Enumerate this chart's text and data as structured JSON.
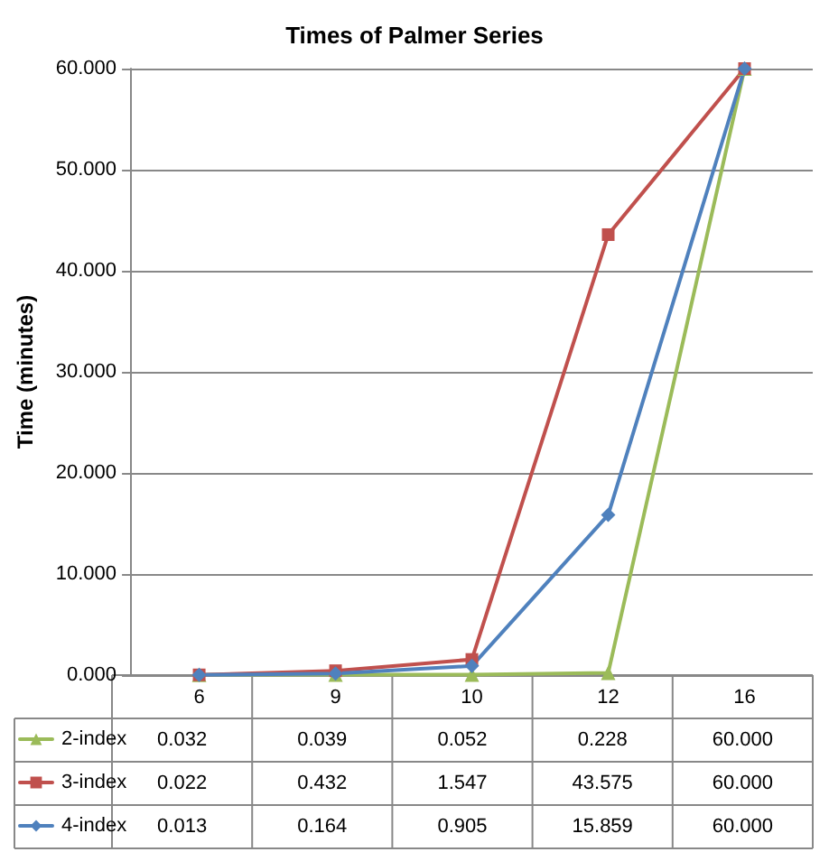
{
  "chart_data": {
    "type": "line",
    "title": "Times of Palmer Series",
    "ylabel": "Time (minutes)",
    "categories": [
      "6",
      "9",
      "10",
      "12",
      "16"
    ],
    "series": [
      {
        "name": "2-index",
        "color": "#9bbb59",
        "marker": "triangle",
        "values": [
          0.032,
          0.039,
          0.052,
          0.228,
          60.0
        ],
        "value_labels": [
          "0.032",
          "0.039",
          "0.052",
          "0.228",
          "60.000"
        ]
      },
      {
        "name": "3-index",
        "color": "#c0504d",
        "marker": "square",
        "values": [
          0.022,
          0.432,
          1.547,
          43.575,
          60.0
        ],
        "value_labels": [
          "0.022",
          "0.432",
          "1.547",
          "43.575",
          "60.000"
        ]
      },
      {
        "name": "4-index",
        "color": "#4f81bd",
        "marker": "diamond",
        "values": [
          0.013,
          0.164,
          0.905,
          15.859,
          60.0
        ],
        "value_labels": [
          "0.013",
          "0.164",
          "0.905",
          "15.859",
          "60.000"
        ]
      }
    ],
    "ylim": [
      0,
      60
    ],
    "yticks": [
      {
        "value": 0,
        "label": "0.000"
      },
      {
        "value": 10,
        "label": "10.000"
      },
      {
        "value": 20,
        "label": "20.000"
      },
      {
        "value": 30,
        "label": "30.000"
      },
      {
        "value": 40,
        "label": "40.000"
      },
      {
        "value": 50,
        "label": "50.000"
      },
      {
        "value": 60,
        "label": "60.000"
      }
    ],
    "grid": "y",
    "legend": "bottom left",
    "line_style": "solid"
  }
}
